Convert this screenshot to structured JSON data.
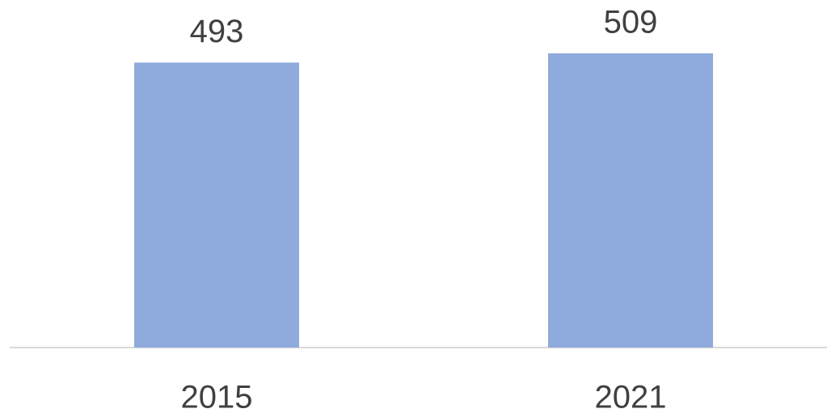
{
  "chart_data": {
    "type": "bar",
    "categories": [
      "2015",
      "2021"
    ],
    "values": [
      493,
      509
    ],
    "color": "#8faadc"
  }
}
